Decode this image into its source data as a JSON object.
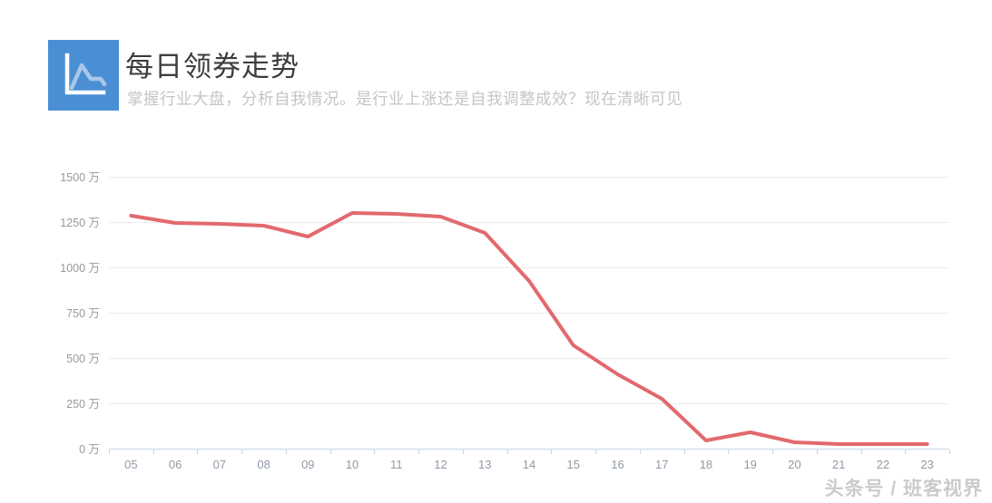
{
  "header": {
    "title": "每日领券走势",
    "subtitle": "掌握行业大盘，分析自我情况。是行业上涨还是自我调整成效？现在清晰可见",
    "icon": "line-chart-icon"
  },
  "watermark": "头条号 / 班客视界",
  "colors": {
    "brand_blue": "#4a8fd4",
    "icon_polyline": "#a7c7ea",
    "series_line": "#e2696d",
    "axis_line": "#c9d7e8",
    "gridline": "#ececec",
    "y_label": "#999999",
    "x_label": "#8f9aa7",
    "title_text": "#3d3d3d",
    "subtitle_text": "#c5c5c5"
  },
  "chart_data": {
    "type": "line",
    "title": "每日领券走势",
    "categories": [
      "05",
      "06",
      "07",
      "08",
      "09",
      "10",
      "11",
      "12",
      "13",
      "14",
      "15",
      "16",
      "17",
      "18",
      "19",
      "20",
      "21",
      "22",
      "23"
    ],
    "values": [
      1285,
      1245,
      1240,
      1230,
      1170,
      1300,
      1295,
      1280,
      1190,
      925,
      570,
      410,
      275,
      45,
      90,
      35,
      25,
      25,
      25
    ],
    "unit": "万",
    "xlabel": "",
    "ylabel": "",
    "y_ticks": [
      0,
      250,
      500,
      750,
      1000,
      1250,
      1500
    ],
    "ylim": [
      0,
      1500
    ],
    "grid": true,
    "legend": "none",
    "line_width": 4
  }
}
